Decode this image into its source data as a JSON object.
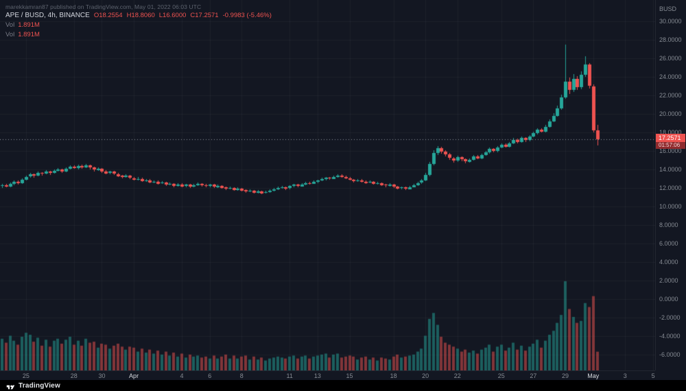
{
  "attribution": "marekkamran87 published on TradingView.com, May 01, 2022 06:03 UTC",
  "legend": {
    "symbol": "APE / BUSD, 4h, BINANCE",
    "ohlc": [
      "O18.2554",
      "H18.8060",
      "L16.6000",
      "C17.2571",
      "-0.9983 (-5.46%)"
    ],
    "vol_rows": [
      {
        "label": "Vol",
        "value": "1.891M"
      },
      {
        "label": "Vol",
        "value": "1.891M"
      }
    ]
  },
  "price_tag": {
    "price": "17.2571",
    "countdown": "01:57:06"
  },
  "footer": {
    "brand": "TradingView"
  },
  "colors": {
    "background": "#131722",
    "up": "#26a69a",
    "down": "#ef5350",
    "axis_text": "#868b93",
    "price_tag_bg": "#ef5350"
  },
  "chart_data": {
    "type": "candlestick",
    "title": "APE / BUSD, 4h, BINANCE",
    "ylabel": "BUSD",
    "ylim": [
      -6,
      30
    ],
    "grid": true,
    "last_price": 17.2571,
    "y_ticks": [
      "30.0000",
      "28.0000",
      "26.0000",
      "24.0000",
      "22.0000",
      "20.0000",
      "18.0000",
      "16.0000",
      "14.0000",
      "12.0000",
      "10.0000",
      "8.0000",
      "6.0000",
      "4.0000",
      "2.0000",
      "0.0000",
      "-2.0000",
      "-4.0000",
      "-6.0000"
    ],
    "x_ticks": [
      {
        "label": "25",
        "slot": 6
      },
      {
        "label": "28",
        "slot": 18
      },
      {
        "label": "30",
        "slot": 25
      },
      {
        "label": "Apr",
        "slot": 33,
        "major": true
      },
      {
        "label": "4",
        "slot": 45
      },
      {
        "label": "6",
        "slot": 52
      },
      {
        "label": "8",
        "slot": 60
      },
      {
        "label": "11",
        "slot": 72
      },
      {
        "label": "13",
        "slot": 79
      },
      {
        "label": "15",
        "slot": 87
      },
      {
        "label": "18",
        "slot": 98
      },
      {
        "label": "20",
        "slot": 106
      },
      {
        "label": "22",
        "slot": 114
      },
      {
        "label": "25",
        "slot": 125
      },
      {
        "label": "27",
        "slot": 133
      },
      {
        "label": "29",
        "slot": 141
      },
      {
        "label": "May",
        "slot": 148,
        "major": true
      },
      {
        "label": "3",
        "slot": 156
      },
      {
        "label": "5",
        "slot": 163
      }
    ],
    "slots_total": 164,
    "volume_unit": "M",
    "volume_max_hint": 9.0,
    "candles_format": [
      "open",
      "high",
      "low",
      "close",
      "volume_M"
    ],
    "candles": [
      [
        12.2,
        12.48,
        12.05,
        12.3,
        3.2
      ],
      [
        12.3,
        12.42,
        12.02,
        12.15,
        2.8
      ],
      [
        12.15,
        12.6,
        12.08,
        12.45,
        3.5
      ],
      [
        12.45,
        12.85,
        12.35,
        12.7,
        3.0
      ],
      [
        12.7,
        12.82,
        12.4,
        12.55,
        2.6
      ],
      [
        12.55,
        13.05,
        12.48,
        12.9,
        3.4
      ],
      [
        12.9,
        13.35,
        12.8,
        13.2,
        3.8
      ],
      [
        13.2,
        13.6,
        13.1,
        13.45,
        3.6
      ],
      [
        13.45,
        13.58,
        13.15,
        13.3,
        2.9
      ],
      [
        13.3,
        13.75,
        13.22,
        13.6,
        3.3
      ],
      [
        13.6,
        13.72,
        13.35,
        13.5,
        2.5
      ],
      [
        13.5,
        13.9,
        13.42,
        13.75,
        3.1
      ],
      [
        13.75,
        13.88,
        13.45,
        13.6,
        2.4
      ],
      [
        13.6,
        14.0,
        13.52,
        13.85,
        3.0
      ],
      [
        13.85,
        14.15,
        13.75,
        14.0,
        3.2
      ],
      [
        14.0,
        14.1,
        13.65,
        13.8,
        2.7
      ],
      [
        13.8,
        14.25,
        13.72,
        14.1,
        3.1
      ],
      [
        14.1,
        14.45,
        14.0,
        14.3,
        3.4
      ],
      [
        14.3,
        14.42,
        14.02,
        14.15,
        2.6
      ],
      [
        14.15,
        14.55,
        14.05,
        14.4,
        3.0
      ],
      [
        14.4,
        14.52,
        14.1,
        14.25,
        2.5
      ],
      [
        14.25,
        14.62,
        14.15,
        14.45,
        3.2
      ],
      [
        14.45,
        14.55,
        14.05,
        14.2,
        2.8
      ],
      [
        14.2,
        14.32,
        13.82,
        13.95,
        2.9
      ],
      [
        13.95,
        14.25,
        13.85,
        14.1,
        2.3
      ],
      [
        14.1,
        14.18,
        13.68,
        13.8,
        2.7
      ],
      [
        13.8,
        13.92,
        13.45,
        13.6,
        2.6
      ],
      [
        13.6,
        13.88,
        13.5,
        13.75,
        2.2
      ],
      [
        13.75,
        13.85,
        13.38,
        13.5,
        2.5
      ],
      [
        13.5,
        13.62,
        13.18,
        13.3,
        2.7
      ],
      [
        13.3,
        13.42,
        13.02,
        13.15,
        2.4
      ],
      [
        13.15,
        13.45,
        13.05,
        13.3,
        2.1
      ],
      [
        13.3,
        13.4,
        12.92,
        13.05,
        2.4
      ],
      [
        13.05,
        13.18,
        12.78,
        12.9,
        2.3
      ],
      [
        12.9,
        13.15,
        12.8,
        13.0,
        1.9
      ],
      [
        13.0,
        13.1,
        12.62,
        12.75,
        2.2
      ],
      [
        12.75,
        12.98,
        12.65,
        12.85,
        1.8
      ],
      [
        12.85,
        12.95,
        12.48,
        12.6,
        2.1
      ],
      [
        12.6,
        12.85,
        12.52,
        12.7,
        1.7
      ],
      [
        12.7,
        12.8,
        12.38,
        12.5,
        2.0
      ],
      [
        12.5,
        12.75,
        12.42,
        12.6,
        1.6
      ],
      [
        12.6,
        12.7,
        12.22,
        12.35,
        1.9
      ],
      [
        12.35,
        12.6,
        12.28,
        12.45,
        1.5
      ],
      [
        12.45,
        12.55,
        12.12,
        12.25,
        1.8
      ],
      [
        12.25,
        12.55,
        12.15,
        12.4,
        1.4
      ],
      [
        12.4,
        12.5,
        12.08,
        12.2,
        1.7
      ],
      [
        12.2,
        12.48,
        12.1,
        12.35,
        1.3
      ],
      [
        12.35,
        12.45,
        12.02,
        12.15,
        1.6
      ],
      [
        12.15,
        12.45,
        12.05,
        12.3,
        1.4
      ],
      [
        12.3,
        12.58,
        12.2,
        12.45,
        1.5
      ],
      [
        12.45,
        12.55,
        12.18,
        12.3,
        1.3
      ],
      [
        12.3,
        12.42,
        12.08,
        12.2,
        1.4
      ],
      [
        12.2,
        12.48,
        12.12,
        12.35,
        1.2
      ],
      [
        12.35,
        12.42,
        11.98,
        12.1,
        1.5
      ],
      [
        12.1,
        12.38,
        12.0,
        12.25,
        1.2
      ],
      [
        12.25,
        12.32,
        11.92,
        12.05,
        1.4
      ],
      [
        12.05,
        12.15,
        11.78,
        11.9,
        1.6
      ],
      [
        11.9,
        12.12,
        11.8,
        12.0,
        1.2
      ],
      [
        12.0,
        12.08,
        11.68,
        11.8,
        1.5
      ],
      [
        11.8,
        12.08,
        11.72,
        11.95,
        1.2
      ],
      [
        11.95,
        12.02,
        11.62,
        11.75,
        1.4
      ],
      [
        11.75,
        11.88,
        11.48,
        11.6,
        1.5
      ],
      [
        11.6,
        11.82,
        11.52,
        11.7,
        1.1
      ],
      [
        11.7,
        11.78,
        11.38,
        11.5,
        1.4
      ],
      [
        11.5,
        11.78,
        11.42,
        11.65,
        1.1
      ],
      [
        11.65,
        11.72,
        11.32,
        11.45,
        1.3
      ],
      [
        11.45,
        11.68,
        11.38,
        11.55,
        1.0
      ],
      [
        11.55,
        11.82,
        11.45,
        11.7,
        1.2
      ],
      [
        11.7,
        11.98,
        11.6,
        11.85,
        1.3
      ],
      [
        11.85,
        12.12,
        11.75,
        12.0,
        1.4
      ],
      [
        12.0,
        12.22,
        11.9,
        12.1,
        1.3
      ],
      [
        12.1,
        12.18,
        11.82,
        11.95,
        1.2
      ],
      [
        11.95,
        12.32,
        11.88,
        12.2,
        1.4
      ],
      [
        12.2,
        12.48,
        12.1,
        12.35,
        1.5
      ],
      [
        12.35,
        12.45,
        12.08,
        12.2,
        1.2
      ],
      [
        12.2,
        12.52,
        12.12,
        12.4,
        1.4
      ],
      [
        12.4,
        12.68,
        12.3,
        12.55,
        1.5
      ],
      [
        12.55,
        12.65,
        12.32,
        12.45,
        1.2
      ],
      [
        12.45,
        12.78,
        12.38,
        12.65,
        1.4
      ],
      [
        12.65,
        12.92,
        12.55,
        12.8,
        1.5
      ],
      [
        12.8,
        13.08,
        12.7,
        12.95,
        1.6
      ],
      [
        12.95,
        13.22,
        12.85,
        13.1,
        1.7
      ],
      [
        13.1,
        13.18,
        12.88,
        13.0,
        1.3
      ],
      [
        13.0,
        13.32,
        12.92,
        13.2,
        1.6
      ],
      [
        13.2,
        13.48,
        13.1,
        13.35,
        1.7
      ],
      [
        13.35,
        13.45,
        13.08,
        13.2,
        1.3
      ],
      [
        13.2,
        13.3,
        12.92,
        13.05,
        1.4
      ],
      [
        13.05,
        13.15,
        12.78,
        12.9,
        1.5
      ],
      [
        12.9,
        13.0,
        12.62,
        12.75,
        1.4
      ],
      [
        12.75,
        12.98,
        12.65,
        12.85,
        1.1
      ],
      [
        12.85,
        12.95,
        12.58,
        12.7,
        1.3
      ],
      [
        12.7,
        12.8,
        12.42,
        12.55,
        1.4
      ],
      [
        12.55,
        12.78,
        12.48,
        12.65,
        1.1
      ],
      [
        12.65,
        12.72,
        12.32,
        12.45,
        1.3
      ],
      [
        12.45,
        12.68,
        12.38,
        12.55,
        1.0
      ],
      [
        12.55,
        12.62,
        12.22,
        12.35,
        1.3
      ],
      [
        12.35,
        12.48,
        12.12,
        12.25,
        1.2
      ],
      [
        12.25,
        12.52,
        12.15,
        12.4,
        1.1
      ],
      [
        12.4,
        12.48,
        12.02,
        12.15,
        1.4
      ],
      [
        12.15,
        12.22,
        11.82,
        11.95,
        1.6
      ],
      [
        11.95,
        12.18,
        11.85,
        12.05,
        1.3
      ],
      [
        12.05,
        12.12,
        11.78,
        11.9,
        1.4
      ],
      [
        11.9,
        12.22,
        11.82,
        12.1,
        1.5
      ],
      [
        12.1,
        12.42,
        12.02,
        12.3,
        1.6
      ],
      [
        12.3,
        12.68,
        12.22,
        12.55,
        1.9
      ],
      [
        12.55,
        12.95,
        12.45,
        12.8,
        2.2
      ],
      [
        12.8,
        13.6,
        12.72,
        13.4,
        3.5
      ],
      [
        13.4,
        14.85,
        13.32,
        14.6,
        5.2
      ],
      [
        14.6,
        16.1,
        14.5,
        15.8,
        5.8
      ],
      [
        15.8,
        16.55,
        15.6,
        16.3,
        4.6
      ],
      [
        16.3,
        16.45,
        15.7,
        15.9,
        3.4
      ],
      [
        15.9,
        16.1,
        15.42,
        15.6,
        2.8
      ],
      [
        15.6,
        15.75,
        15.02,
        15.2,
        2.6
      ],
      [
        15.2,
        15.35,
        14.78,
        14.95,
        2.4
      ],
      [
        14.95,
        15.48,
        14.85,
        15.3,
        2.2
      ],
      [
        15.3,
        15.42,
        14.92,
        15.1,
        1.9
      ],
      [
        15.1,
        15.22,
        14.7,
        14.85,
        2.1
      ],
      [
        14.85,
        15.2,
        14.72,
        15.05,
        1.8
      ],
      [
        15.05,
        15.55,
        14.95,
        15.4,
        2.0
      ],
      [
        15.4,
        15.52,
        15.05,
        15.2,
        1.7
      ],
      [
        15.2,
        15.7,
        15.1,
        15.55,
        2.1
      ],
      [
        15.55,
        16.0,
        15.45,
        15.85,
        2.3
      ],
      [
        15.85,
        16.38,
        15.75,
        16.2,
        2.6
      ],
      [
        16.2,
        16.32,
        15.88,
        16.0,
        1.9
      ],
      [
        16.0,
        16.55,
        15.92,
        16.4,
        2.4
      ],
      [
        16.4,
        16.85,
        16.3,
        16.7,
        2.6
      ],
      [
        16.7,
        16.82,
        16.38,
        16.5,
        2.0
      ],
      [
        16.5,
        17.0,
        16.42,
        16.85,
        2.3
      ],
      [
        16.85,
        17.38,
        16.75,
        17.2,
        2.8
      ],
      [
        17.2,
        17.3,
        16.8,
        16.95,
        2.1
      ],
      [
        16.95,
        17.55,
        16.88,
        17.4,
        2.5
      ],
      [
        17.4,
        17.5,
        17.0,
        17.15,
        2.0
      ],
      [
        17.15,
        17.7,
        17.05,
        17.55,
        2.4
      ],
      [
        17.55,
        18.05,
        17.45,
        17.9,
        2.7
      ],
      [
        17.9,
        18.48,
        17.8,
        18.3,
        3.1
      ],
      [
        18.3,
        18.42,
        17.95,
        18.1,
        2.3
      ],
      [
        18.1,
        18.78,
        18.0,
        18.6,
        3.0
      ],
      [
        18.6,
        19.42,
        18.5,
        19.2,
        3.6
      ],
      [
        19.2,
        20.05,
        19.08,
        19.8,
        4.0
      ],
      [
        19.8,
        20.9,
        19.7,
        20.6,
        4.8
      ],
      [
        20.6,
        22.1,
        20.48,
        21.8,
        5.6
      ],
      [
        21.8,
        27.49,
        21.65,
        23.5,
        9.0
      ],
      [
        23.5,
        23.95,
        22.2,
        22.6,
        6.2
      ],
      [
        22.6,
        24.3,
        22.4,
        23.8,
        5.4
      ],
      [
        23.8,
        24.05,
        22.55,
        22.9,
        4.8
      ],
      [
        22.9,
        24.6,
        22.7,
        24.2,
        5.0
      ],
      [
        24.2,
        26.2,
        24.0,
        25.3,
        6.8
      ],
      [
        25.3,
        25.45,
        22.7,
        23.0,
        6.4
      ],
      [
        23.0,
        23.2,
        18.0,
        18.2554,
        7.5
      ],
      [
        18.2554,
        18.806,
        16.6,
        17.2571,
        1.891
      ]
    ]
  }
}
